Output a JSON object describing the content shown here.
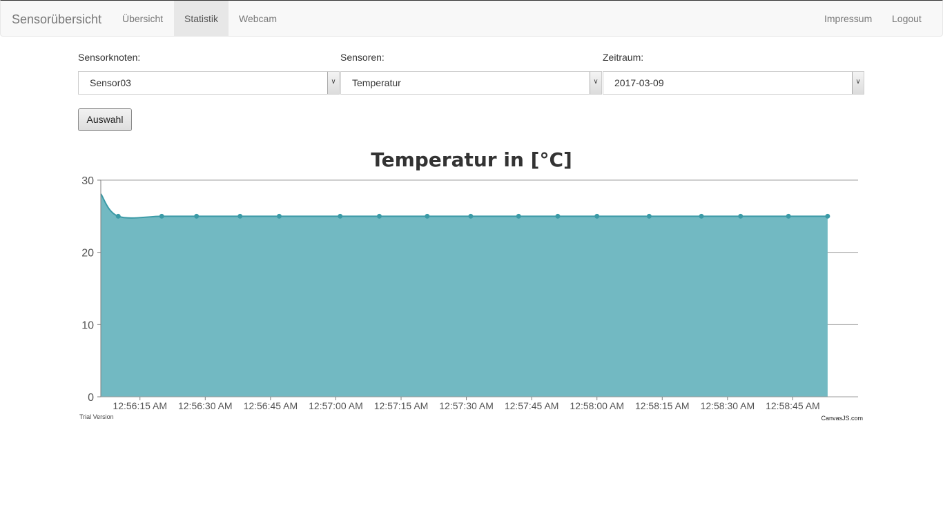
{
  "navbar": {
    "brand": "Sensorübersicht",
    "links": [
      {
        "label": "Übersicht",
        "active": false
      },
      {
        "label": "Statistik",
        "active": true
      },
      {
        "label": "Webcam",
        "active": false
      }
    ],
    "right_links": [
      {
        "label": "Impressum"
      },
      {
        "label": "Logout"
      }
    ]
  },
  "form": {
    "sensorknoten": {
      "label": "Sensorknoten:",
      "value": "Sensor03"
    },
    "sensoren": {
      "label": "Sensoren:",
      "value": "Temperatur"
    },
    "zeitraum": {
      "label": "Zeitraum:",
      "value": "2017-03-09"
    },
    "submit_label": "Auswahl"
  },
  "colors": {
    "area_fill": "#72b9c2",
    "line": "#3b9aa6",
    "grid": "#9e9e9e"
  },
  "chart_data": {
    "type": "area",
    "title": "Temperatur in [°C]",
    "xlabel": "",
    "ylabel": "",
    "ylim": [
      0,
      30
    ],
    "y_ticks": [
      0,
      10,
      20,
      30
    ],
    "x_range": [
      "12:56:06 AM",
      "12:59:00 AM"
    ],
    "x_tick_labels": [
      "12:56:15 AM",
      "12:56:30 AM",
      "12:56:45 AM",
      "12:57:00 AM",
      "12:57:15 AM",
      "12:57:30 AM",
      "12:57:45 AM",
      "12:58:00 AM",
      "12:58:15 AM",
      "12:58:30 AM",
      "12:58:45 AM"
    ],
    "grid": true,
    "series": [
      {
        "marker_start": 1,
        "points": [
          {
            "x": "12:56:06 AM",
            "y": 28.1
          },
          {
            "x": "12:56:10 AM",
            "y": 25.0
          },
          {
            "x": "12:56:20 AM",
            "y": 25.0
          },
          {
            "x": "12:56:28 AM",
            "y": 25.0
          },
          {
            "x": "12:56:38 AM",
            "y": 25.0
          },
          {
            "x": "12:56:47 AM",
            "y": 25.0
          },
          {
            "x": "12:57:01 AM",
            "y": 25.0
          },
          {
            "x": "12:57:10 AM",
            "y": 25.0
          },
          {
            "x": "12:57:21 AM",
            "y": 25.0
          },
          {
            "x": "12:57:31 AM",
            "y": 25.0
          },
          {
            "x": "12:57:42 AM",
            "y": 25.0
          },
          {
            "x": "12:57:51 AM",
            "y": 25.0
          },
          {
            "x": "12:58:00 AM",
            "y": 25.0
          },
          {
            "x": "12:58:12 AM",
            "y": 25.0
          },
          {
            "x": "12:58:24 AM",
            "y": 25.0
          },
          {
            "x": "12:58:33 AM",
            "y": 25.0
          },
          {
            "x": "12:58:44 AM",
            "y": 25.0
          },
          {
            "x": "12:58:53 AM",
            "y": 25.0
          }
        ]
      }
    ],
    "footer_left": "Trial Version",
    "footer_right": "CanvasJS.com"
  }
}
